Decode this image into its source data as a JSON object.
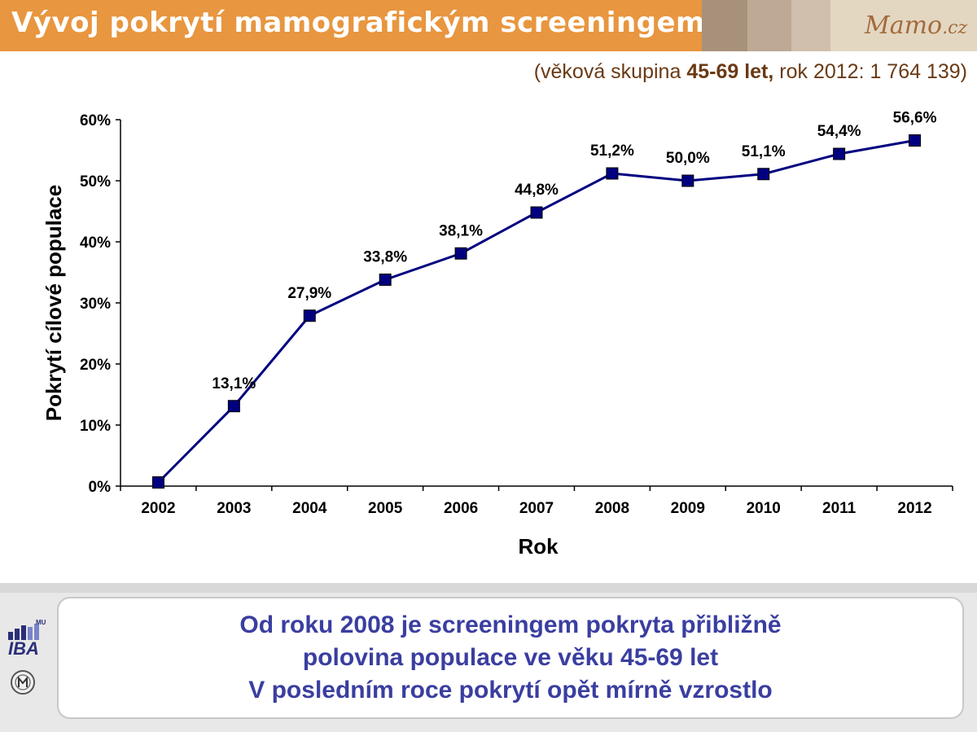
{
  "header": {
    "title": "Vývoj pokrytí mamografickým screeningem",
    "logo_main": "Mamo",
    "logo_suffix": ".cz"
  },
  "subtitle": {
    "prefix": "(věková skupina ",
    "bold": "45-69 let,",
    "suffix": " rok 2012: 1 764 139)"
  },
  "chart_data": {
    "type": "line",
    "title": "",
    "xlabel": "Rok",
    "ylabel": "Pokrytí cílové populace",
    "categories": [
      "2002",
      "2003",
      "2004",
      "2005",
      "2006",
      "2007",
      "2008",
      "2009",
      "2010",
      "2011",
      "2012"
    ],
    "values": [
      0.6,
      13.1,
      27.9,
      33.8,
      38.1,
      44.8,
      51.2,
      50.0,
      51.1,
      54.4,
      56.6
    ],
    "data_labels": [
      "",
      "13,1%",
      "27,9%",
      "33,8%",
      "38,1%",
      "44,8%",
      "51,2%",
      "50,0%",
      "51,1%",
      "54,4%",
      "56,6%"
    ],
    "y_ticks": [
      "0%",
      "10%",
      "20%",
      "30%",
      "40%",
      "50%",
      "60%"
    ],
    "ylim": [
      0,
      60
    ],
    "grid": false,
    "line_color": "#000080",
    "marker": "square"
  },
  "callout": {
    "line1": "Od roku 2008 je screeningem pokryta přibližně",
    "line2": "polovina populace ve věku 45-69 let",
    "line3": "V posledním roce pokrytí opět mírně vzrostlo"
  },
  "logos": {
    "iba": "IBA",
    "mu": "MU"
  },
  "colors": {
    "header_bg": "#e8963f",
    "callout_text": "#3a3ea0",
    "subtitle_text": "#6a3a14"
  }
}
